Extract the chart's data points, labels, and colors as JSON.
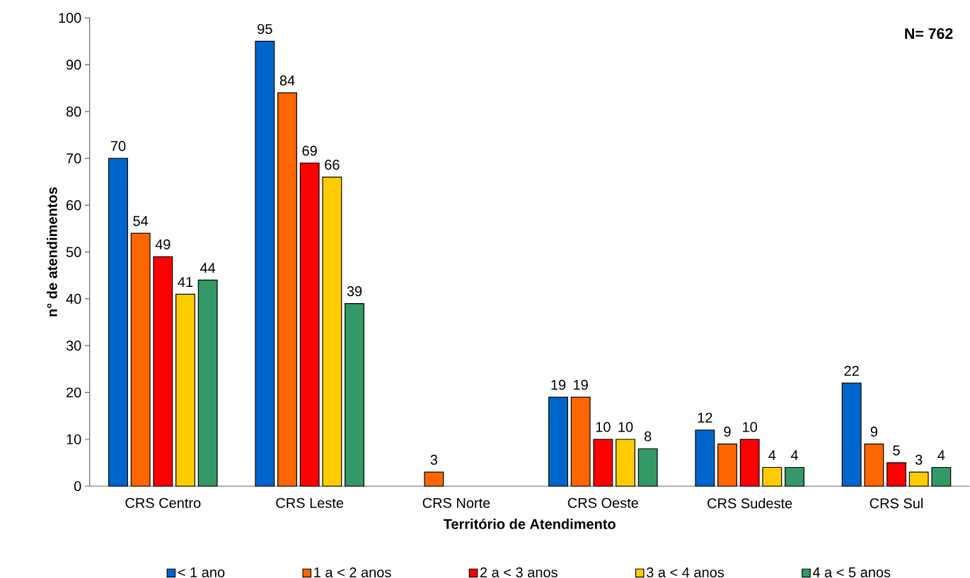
{
  "chart_data": {
    "type": "bar",
    "xlabel": "Território de Atendimento",
    "ylabel": "n° de atendimentos",
    "categories": [
      "CRS Centro",
      "CRS Leste",
      "CRS Norte",
      "CRS Oeste",
      "CRS Sudeste",
      "CRS Sul"
    ],
    "series": [
      {
        "name": "< 1 ano",
        "color": "#0066cc",
        "values": [
          70,
          95,
          null,
          19,
          12,
          22
        ]
      },
      {
        "name": "1 a < 2 anos",
        "color": "#ff6600",
        "values": [
          54,
          84,
          3,
          19,
          9,
          9
        ]
      },
      {
        "name": "2 a < 3 anos",
        "color": "#ff0000",
        "values": [
          49,
          69,
          null,
          10,
          10,
          5
        ]
      },
      {
        "name": "3 a < 4 anos",
        "color": "#ffcc00",
        "values": [
          41,
          66,
          null,
          10,
          4,
          3
        ]
      },
      {
        "name": "4 a < 5 anos",
        "color": "#339966",
        "values": [
          44,
          39,
          null,
          8,
          4,
          4
        ]
      }
    ],
    "ylim": [
      0,
      100
    ],
    "yticks": [
      0,
      10,
      20,
      30,
      40,
      50,
      60,
      70,
      80,
      90,
      100
    ],
    "data_labels": true,
    "legend": "bottom",
    "grid": false,
    "annotations": [
      "N= 762"
    ]
  }
}
